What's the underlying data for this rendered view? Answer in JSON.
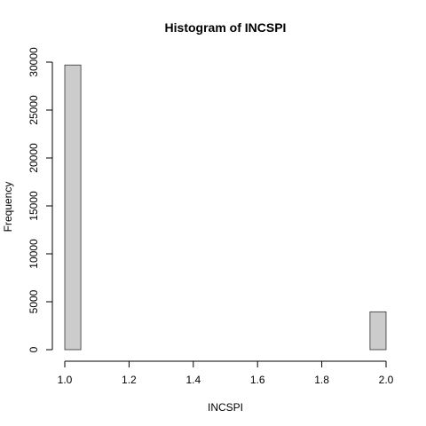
{
  "chart_data": {
    "type": "bar",
    "title": "Histogram of INCSPI",
    "xlabel": "INCSPI",
    "ylabel": "Frequency",
    "bin_edges": [
      1.0,
      1.05,
      1.1,
      1.15,
      1.2,
      1.25,
      1.3,
      1.35,
      1.4,
      1.45,
      1.5,
      1.55,
      1.6,
      1.65,
      1.7,
      1.75,
      1.8,
      1.85,
      1.9,
      1.95,
      2.0
    ],
    "values": [
      29700,
      0,
      0,
      0,
      0,
      0,
      0,
      0,
      0,
      0,
      0,
      0,
      0,
      0,
      0,
      0,
      0,
      0,
      0,
      3950
    ],
    "xlim": [
      1.0,
      2.0
    ],
    "ylim": [
      0,
      30000
    ],
    "x_ticks": [
      "1.0",
      "1.2",
      "1.4",
      "1.6",
      "1.8",
      "2.0"
    ],
    "y_ticks": [
      "0",
      "5000",
      "10000",
      "15000",
      "20000",
      "25000",
      "30000"
    ],
    "bar_color": "#cccccc",
    "grid": false
  }
}
